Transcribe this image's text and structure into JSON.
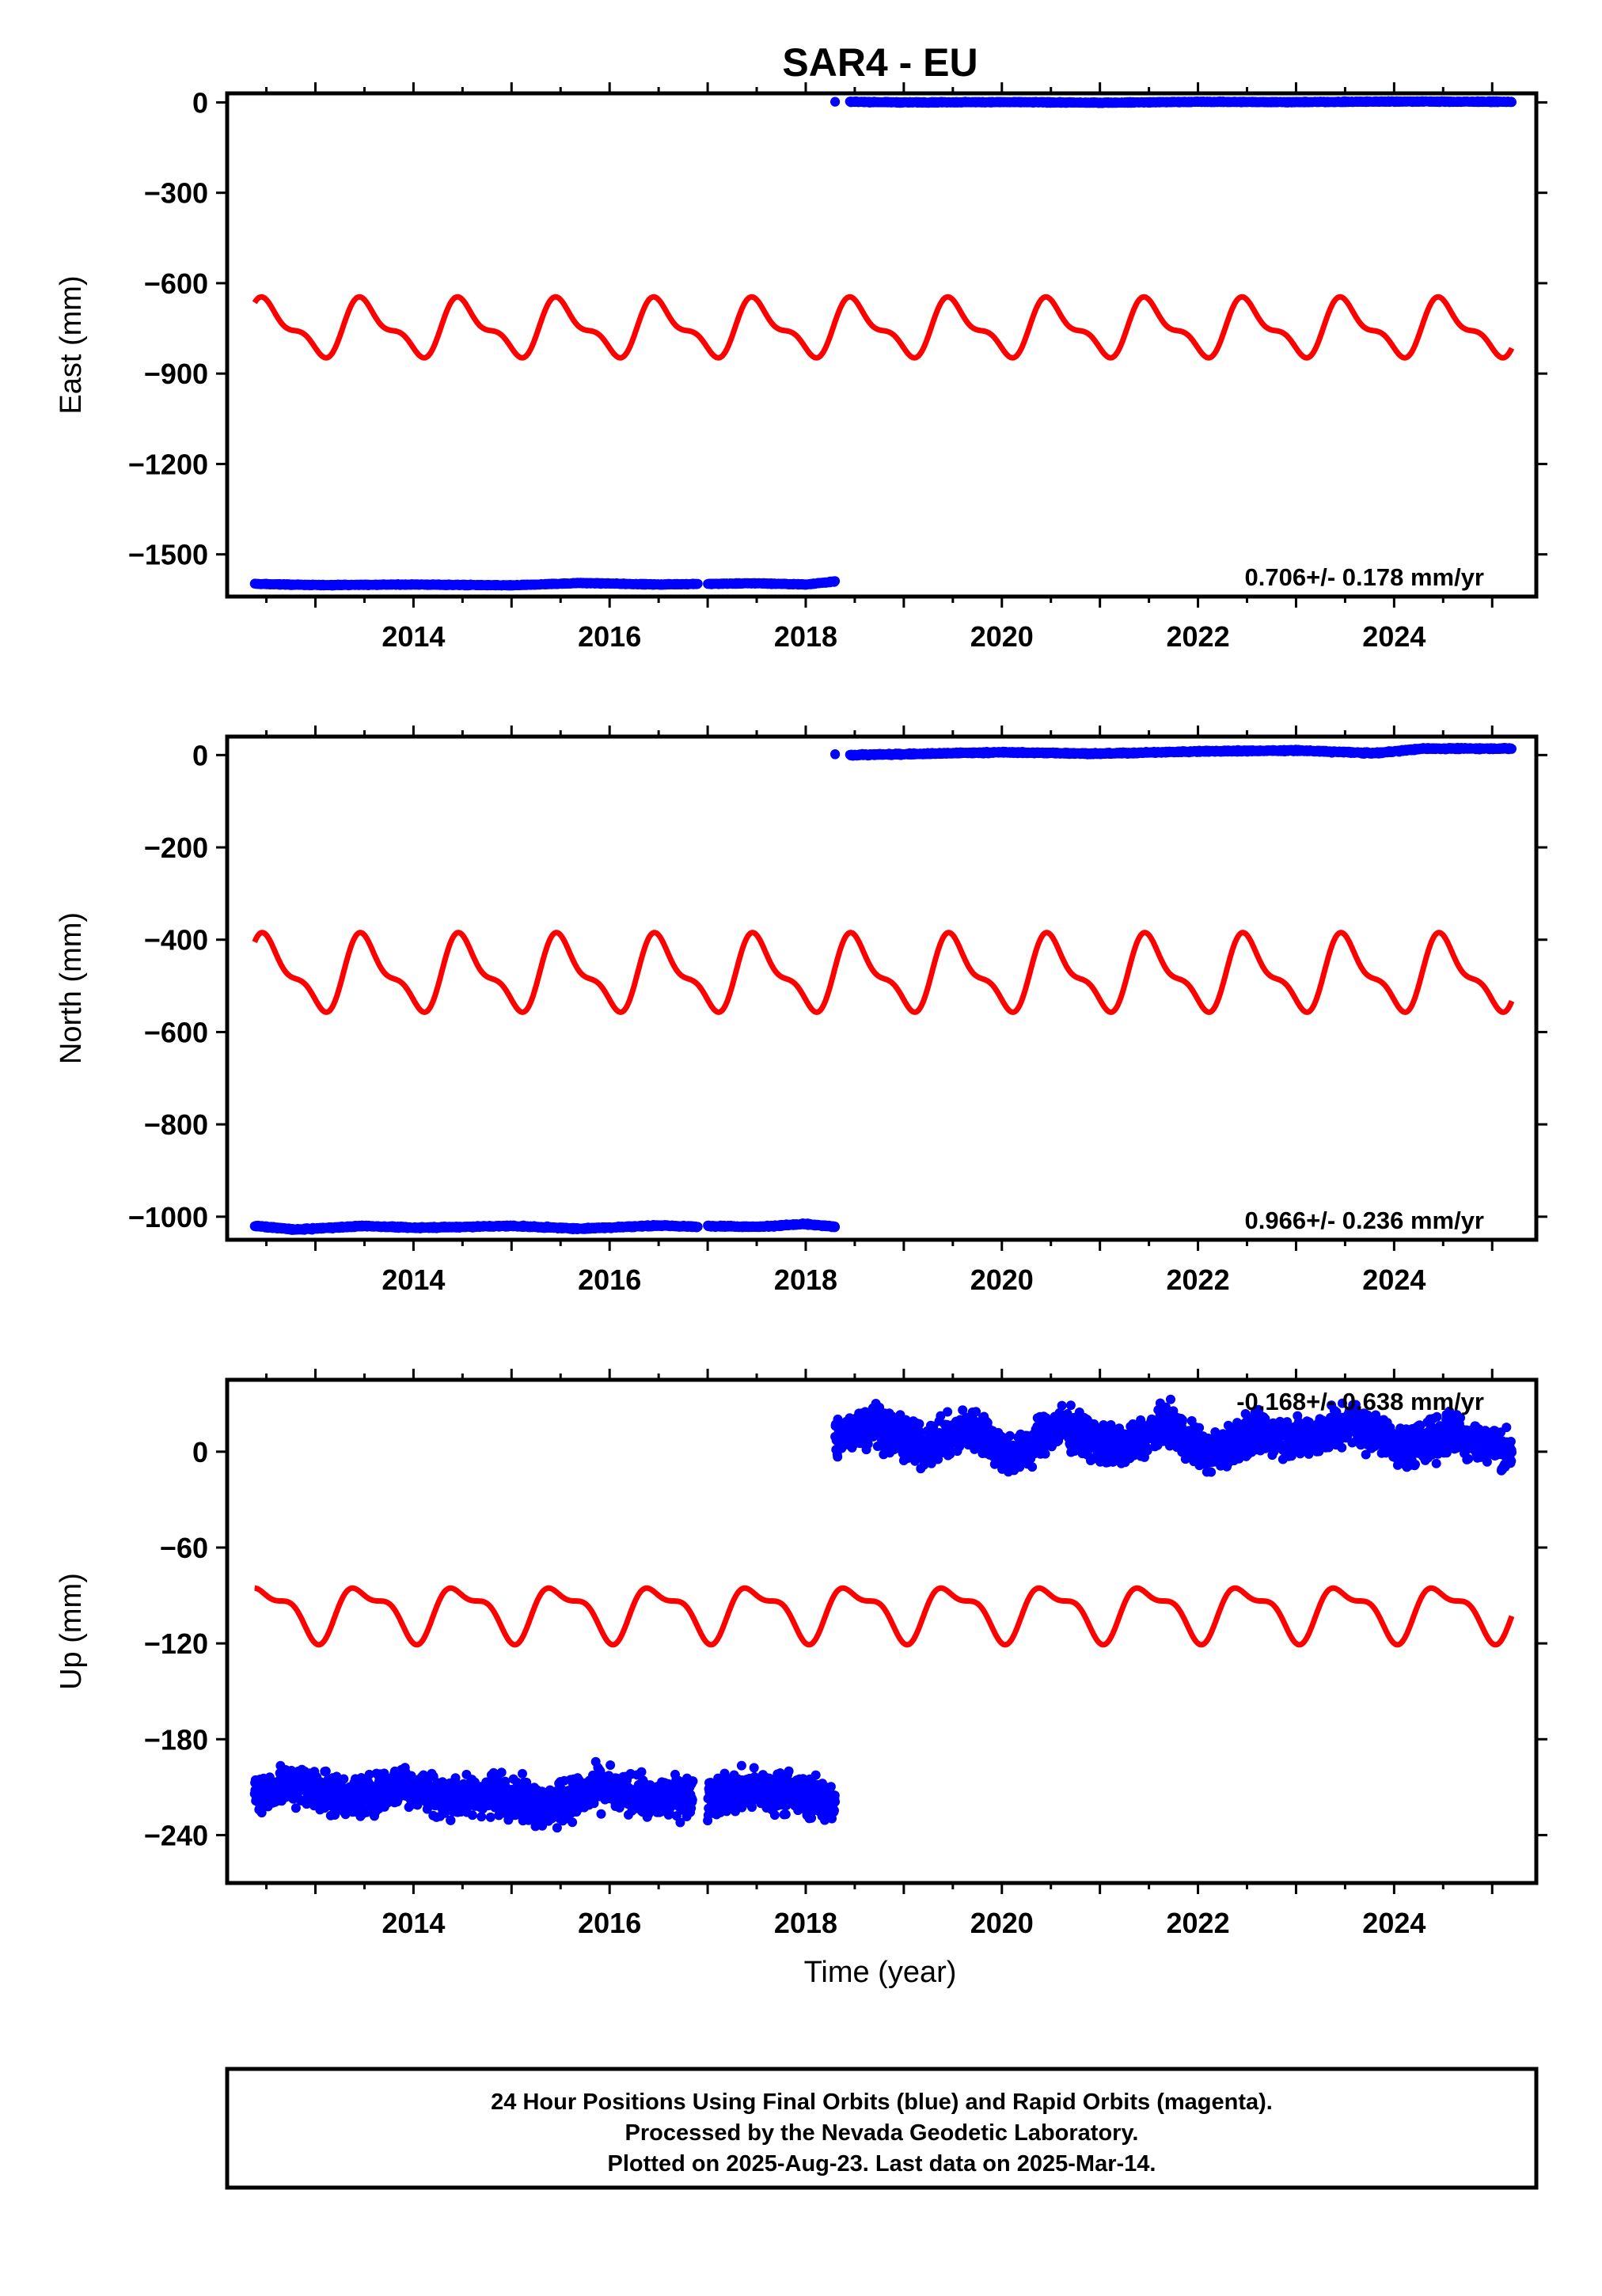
{
  "title": "SAR4 - EU",
  "xlabel": "Time (year)",
  "caption": [
    "24 Hour Positions Using Final Orbits (blue) and Rapid Orbits (magenta).",
    "Processed by the Nevada Geodetic Laboratory.",
    "Plotted on 2025-Aug-23. Last data on 2025-Mar-14."
  ],
  "colors": {
    "final": "#0000ff",
    "seasonal": "#ff0000",
    "axes": "#000000"
  },
  "chart_data": [
    {
      "type": "scatter",
      "ylabel": "East (mm)",
      "rate_label": "0.706+/- 0.178 mm/yr",
      "xlim": [
        2012.1,
        2025.45
      ],
      "ylim": [
        -1640,
        30
      ],
      "x_ticks": [
        2014,
        2016,
        2018,
        2020,
        2022,
        2024
      ],
      "y_ticks": [
        0,
        -300,
        -600,
        -900,
        -1200,
        -1500
      ],
      "series": [
        {
          "kind": "points",
          "color": "#0000ff",
          "segments": [
            {
              "x": [
                2012.38,
                2013.0,
                2014.0,
                2015.0,
                2015.7,
                2016.5,
                2016.9
              ],
              "y": [
                -1598,
                -1602,
                -1600,
                -1603,
                -1595,
                -1600,
                -1598
              ]
            },
            {
              "x": [
                2017.0,
                2017.5,
                2018.0,
                2018.3
              ],
              "y": [
                -1598,
                -1596,
                -1600,
                -1590
              ]
            },
            {
              "x": [
                2018.3
              ],
              "y": [
                3
              ]
            },
            {
              "x": [
                2018.45,
                2019.0,
                2020.0,
                2021.0,
                2022.0,
                2023.0,
                2024.0,
                2025.2
              ],
              "y": [
                2,
                0,
                1,
                -1,
                2,
                1,
                3,
                2
              ]
            }
          ]
        },
        {
          "kind": "seasonal",
          "color": "#ff0000",
          "x_start": 2012.38,
          "x_end": 2025.2,
          "center": -750,
          "annual": [
            -80,
            -10
          ],
          "semiannual": [
            15,
            -33
          ]
        }
      ]
    },
    {
      "type": "scatter",
      "ylabel": "North (mm)",
      "rate_label": "0.966+/- 0.236 mm/yr",
      "xlim": [
        2012.1,
        2025.45
      ],
      "ylim": [
        -1050,
        40
      ],
      "x_ticks": [
        2014,
        2016,
        2018,
        2020,
        2022,
        2024
      ],
      "y_ticks": [
        0,
        -200,
        -400,
        -600,
        -800,
        -1000
      ],
      "series": [
        {
          "kind": "points",
          "color": "#0000ff",
          "segments": [
            {
              "x": [
                2012.38,
                2012.8,
                2013.5,
                2014.0,
                2015.0,
                2015.7,
                2016.5,
                2016.9
              ],
              "y": [
                -1020,
                -1028,
                -1020,
                -1024,
                -1020,
                -1026,
                -1019,
                -1022
              ]
            },
            {
              "x": [
                2017.0,
                2017.5,
                2018.0,
                2018.3
              ],
              "y": [
                -1020,
                -1022,
                -1016,
                -1022
              ]
            },
            {
              "x": [
                2018.3
              ],
              "y": [
                3
              ]
            },
            {
              "x": [
                2018.45,
                2019.0,
                2020.0,
                2021.0,
                2022.0,
                2023.0,
                2023.8,
                2024.3,
                2025.2
              ],
              "y": [
                0,
                2,
                6,
                3,
                8,
                10,
                4,
                14,
                14
              ]
            }
          ]
        },
        {
          "kind": "seasonal",
          "color": "#ff0000",
          "x_start": 2012.38,
          "x_end": 2025.2,
          "center": -475,
          "annual": [
            -70,
            -10
          ],
          "semiannual": [
            15,
            -25
          ]
        }
      ]
    },
    {
      "type": "scatter",
      "ylabel": "Up (mm)",
      "rate_label": "-0.168+/- 0.638 mm/yr",
      "xlim": [
        2012.1,
        2025.45
      ],
      "ylim": [
        -270,
        45
      ],
      "x_ticks": [
        2014,
        2016,
        2018,
        2020,
        2022,
        2024
      ],
      "y_ticks": [
        0,
        -60,
        -120,
        -180,
        -240
      ],
      "series": [
        {
          "kind": "points",
          "color": "#0000ff",
          "scatter": 6,
          "segments": [
            {
              "x": [
                2012.38,
                2012.9,
                2013.4,
                2013.9,
                2014.4,
                2014.9,
                2015.4,
                2015.9,
                2016.4,
                2016.85
              ],
              "y": [
                -213,
                -208,
                -218,
                -208,
                -218,
                -214,
                -223,
                -210,
                -218,
                -215
              ]
            },
            {
              "x": [
                2017.0,
                2017.4,
                2017.8,
                2018.3
              ],
              "y": [
                -216,
                -212,
                -213,
                -220
              ]
            },
            {
              "x": [
                2018.3,
                2018.7,
                2019.2,
                2019.7,
                2020.1,
                2020.6,
                2021.2,
                2021.7,
                2022.1,
                2022.6,
                2023.1,
                2023.6,
                2024.1,
                2024.6,
                2025.2
              ],
              "y": [
                8,
                18,
                2,
                15,
                -3,
                16,
                1,
                18,
                -2,
                12,
                8,
                18,
                2,
                12,
                0
              ]
            }
          ]
        },
        {
          "kind": "seasonal",
          "color": "#ff0000",
          "x_start": 2012.38,
          "x_end": 2025.2,
          "center": -100,
          "annual": [
            -15,
            0
          ],
          "semiannual": [
            -5,
            -4
          ]
        }
      ]
    }
  ]
}
